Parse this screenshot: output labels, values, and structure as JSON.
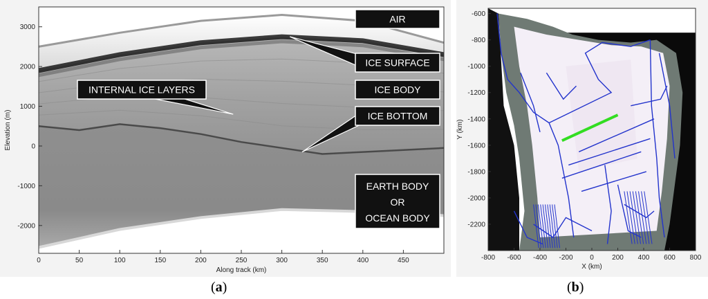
{
  "panel_a": {
    "caption_open": "(",
    "caption_letter": "a",
    "caption_close": ")"
  },
  "panel_b": {
    "caption_open": "(",
    "caption_letter": "b",
    "caption_close": ")"
  },
  "colors": {
    "annotation_box": "#111111",
    "annotation_text": "#ffffff",
    "flight_lines": "#2233cc",
    "highlight_segment": "#33dd22",
    "radar_gray": "#8a8a8a"
  },
  "chart_data": [
    {
      "type": "heatmap",
      "title": "",
      "xlabel": "Along track (km)",
      "ylabel": "Elevation (m)",
      "xlim": [
        0,
        500
      ],
      "ylim": [
        -2700,
        3500
      ],
      "x_ticks": [
        0,
        50,
        100,
        150,
        200,
        250,
        300,
        350,
        400,
        450
      ],
      "y_ticks": [
        3000,
        2000,
        1000,
        0,
        -1000,
        -2000
      ],
      "grid": false,
      "layers": {
        "top_of_data": [
          {
            "x": 0,
            "y": 2500
          },
          {
            "x": 100,
            "y": 2850
          },
          {
            "x": 200,
            "y": 3150
          },
          {
            "x": 300,
            "y": 3300
          },
          {
            "x": 400,
            "y": 3150
          },
          {
            "x": 500,
            "y": 2600
          }
        ],
        "ice_surface": [
          {
            "x": 0,
            "y": 1900
          },
          {
            "x": 100,
            "y": 2300
          },
          {
            "x": 200,
            "y": 2600
          },
          {
            "x": 300,
            "y": 2750
          },
          {
            "x": 400,
            "y": 2650
          },
          {
            "x": 500,
            "y": 2300
          }
        ],
        "ice_bottom": [
          {
            "x": 0,
            "y": 500
          },
          {
            "x": 50,
            "y": 400
          },
          {
            "x": 100,
            "y": 550
          },
          {
            "x": 150,
            "y": 450
          },
          {
            "x": 200,
            "y": 300
          },
          {
            "x": 250,
            "y": 100
          },
          {
            "x": 300,
            "y": -50
          },
          {
            "x": 350,
            "y": -200
          },
          {
            "x": 400,
            "y": -150
          },
          {
            "x": 450,
            "y": -100
          },
          {
            "x": 500,
            "y": -50
          }
        ],
        "bottom_of_data": [
          {
            "x": 0,
            "y": -2550
          },
          {
            "x": 100,
            "y": -2100
          },
          {
            "x": 200,
            "y": -1800
          },
          {
            "x": 300,
            "y": -1600
          },
          {
            "x": 400,
            "y": -1650
          },
          {
            "x": 500,
            "y": -1750
          }
        ]
      },
      "annotations": [
        {
          "text": "AIR",
          "pointer": null
        },
        {
          "text": "ICE SURFACE",
          "pointer": {
            "x": 310,
            "y": 2750
          }
        },
        {
          "text": "INTERNAL ICE LAYERS",
          "pointer": {
            "x": 240,
            "y": 800
          }
        },
        {
          "text": "ICE BODY",
          "pointer": null
        },
        {
          "text": "ICE BOTTOM",
          "pointer": {
            "x": 325,
            "y": -150
          }
        },
        {
          "text": "EARTH BODY",
          "pointer": null
        },
        {
          "text": "OR",
          "pointer": null
        },
        {
          "text": "OCEAN BODY",
          "pointer": null
        }
      ]
    },
    {
      "type": "line",
      "title": "",
      "xlabel": "X (km)",
      "ylabel": "Y (km)",
      "xlim": [
        -800,
        800
      ],
      "ylim": [
        -2400,
        -560
      ],
      "x_ticks": [
        -800,
        -600,
        -400,
        -200,
        0,
        200,
        400,
        600,
        800
      ],
      "y_ticks": [
        -600,
        -800,
        -1000,
        -1200,
        -1400,
        -1600,
        -1800,
        -2000,
        -2200
      ],
      "grid": false,
      "highlight_segment": [
        {
          "x": -230,
          "y": -1565
        },
        {
          "x": 200,
          "y": -1370
        }
      ],
      "flight_lines": [
        [
          {
            "x": -730,
            "y": -600
          },
          {
            "x": -700,
            "y": -900
          },
          {
            "x": -650,
            "y": -1100
          },
          {
            "x": -560,
            "y": -1200
          },
          {
            "x": -450,
            "y": -1350
          },
          {
            "x": -330,
            "y": -1430
          },
          {
            "x": -260,
            "y": -1600
          },
          {
            "x": -180,
            "y": -2000
          },
          {
            "x": -140,
            "y": -2300
          }
        ],
        [
          {
            "x": -330,
            "y": -1430
          },
          {
            "x": 150,
            "y": -1200
          },
          {
            "x": 50,
            "y": -1100
          },
          {
            "x": -50,
            "y": -900
          },
          {
            "x": 80,
            "y": -820
          },
          {
            "x": 300,
            "y": -850
          },
          {
            "x": 450,
            "y": -800
          }
        ],
        [
          {
            "x": 450,
            "y": -800
          },
          {
            "x": 460,
            "y": -1300
          },
          {
            "x": 500,
            "y": -1700
          },
          {
            "x": 520,
            "y": -2000
          },
          {
            "x": 560,
            "y": -2300
          }
        ],
        [
          {
            "x": -230,
            "y": -1850
          },
          {
            "x": 380,
            "y": -1650
          }
        ],
        [
          {
            "x": -180,
            "y": -1750
          },
          {
            "x": 450,
            "y": -1550
          }
        ],
        [
          {
            "x": -80,
            "y": -1950
          },
          {
            "x": 420,
            "y": -1800
          }
        ],
        [
          {
            "x": -100,
            "y": -1650
          },
          {
            "x": 480,
            "y": -1400
          }
        ],
        [
          {
            "x": 300,
            "y": -1300
          },
          {
            "x": 530,
            "y": -1250
          },
          {
            "x": 580,
            "y": -1150
          }
        ],
        [
          {
            "x": 520,
            "y": -900
          },
          {
            "x": 600,
            "y": -1300
          },
          {
            "x": 640,
            "y": -1700
          }
        ],
        [
          {
            "x": -350,
            "y": -1050
          },
          {
            "x": -220,
            "y": -1250
          },
          {
            "x": -120,
            "y": -1150
          }
        ],
        [
          {
            "x": 200,
            "y": -1900
          },
          {
            "x": 280,
            "y": -2250
          },
          {
            "x": 380,
            "y": -2300
          }
        ],
        [
          {
            "x": -450,
            "y": -2200
          },
          {
            "x": -300,
            "y": -2300
          },
          {
            "x": -200,
            "y": -2150
          },
          {
            "x": 0,
            "y": -2250
          }
        ],
        [
          {
            "x": 250,
            "y": -2050
          },
          {
            "x": 420,
            "y": -2150
          },
          {
            "x": 480,
            "y": -2100
          }
        ],
        [
          {
            "x": -550,
            "y": -1050
          },
          {
            "x": -450,
            "y": -1300
          },
          {
            "x": -400,
            "y": -1500
          }
        ],
        [
          {
            "x": 100,
            "y": -1750
          },
          {
            "x": 150,
            "y": -2100
          },
          {
            "x": 120,
            "y": -2350
          }
        ],
        [
          {
            "x": -600,
            "y": -2100
          },
          {
            "x": -500,
            "y": -2300
          },
          {
            "x": -380,
            "y": -2350
          }
        ]
      ]
    }
  ]
}
